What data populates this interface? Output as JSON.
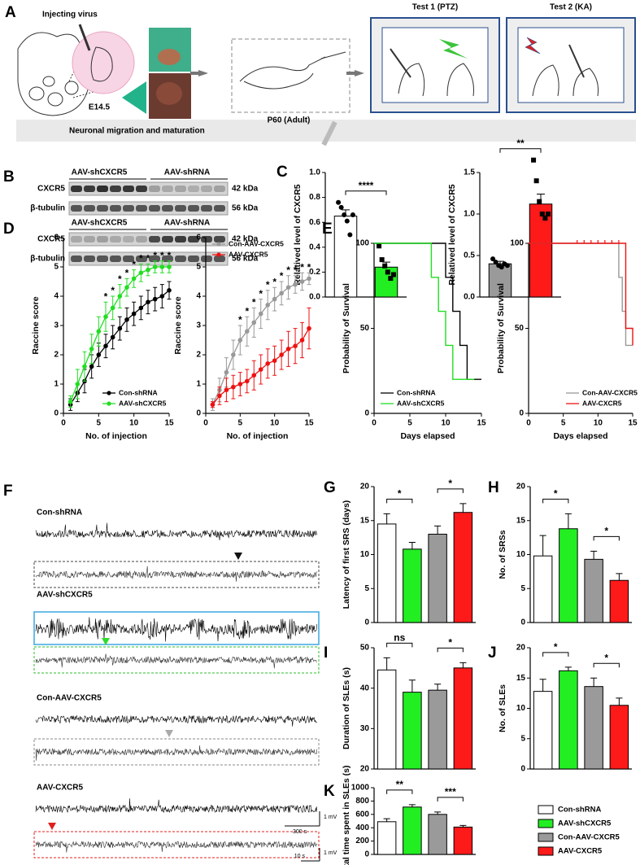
{
  "panel_labels": [
    "A",
    "B",
    "C",
    "D",
    "E",
    "F",
    "G",
    "H",
    "I",
    "J",
    "K"
  ],
  "panel_a": {
    "injection": "Injecting virus",
    "embryo_stage": "E14.5",
    "adult_stage": "P60 (Adult)",
    "tests": [
      "Test 1 (PTZ)",
      "Test 2 (KA)"
    ],
    "band": "Neuronal migration and maturation"
  },
  "panel_b": {
    "blots": [
      {
        "groups": [
          "AAV-shCXCR5",
          "AAV-shRNA"
        ],
        "rows": [
          {
            "protein": "CXCR5",
            "size": "42 kDa"
          },
          {
            "protein": "β-tubulin",
            "size": "56 kDa"
          }
        ]
      },
      {
        "groups": [
          "AAV-shCXCR5",
          "AAV-shRNA"
        ],
        "rows": [
          {
            "protein": "CXCR5",
            "size": "42 kDa"
          },
          {
            "protein": "β-tubulin",
            "size": "56 kDa"
          }
        ]
      }
    ]
  },
  "panel_f": {
    "traces": [
      "Con-shRNA",
      "AAV-shCXCR5",
      "Con-AAV-CXCR5",
      "AAV-CXCR5"
    ],
    "scale_bars": [
      "1 mV",
      "300 s",
      "1 mV",
      "10 s"
    ]
  },
  "legend": [
    {
      "name": "Con-shRNA",
      "color": "#ffffff"
    },
    {
      "name": "AAV-shCXCR5",
      "color": "#22ee22"
    },
    {
      "name": "Con-AAV-CXCR5",
      "color": "#9a9a9a"
    },
    {
      "name": "AAV-CXCR5",
      "color": "#ff1a1a"
    }
  ],
  "chart_data": [
    {
      "type": "bar",
      "ylabel": "Relatived level of CXCR5",
      "values": [
        0.65,
        0.24
      ],
      "errors": [
        0.05,
        0.04
      ],
      "colors": [
        "#ffffff",
        "#22ee22"
      ],
      "points": [
        [
          0.76,
          0.72,
          0.66,
          0.61,
          0.5,
          0.66
        ],
        [
          0.41,
          0.3,
          0.25,
          0.2,
          0.15,
          0.18
        ]
      ],
      "ylim": [
        0,
        1.0
      ],
      "yticks": [
        {
          "value": 0,
          "label": "0.0"
        },
        0.2,
        0.4,
        0.6,
        0.8,
        {
          "value": 1,
          "label": "1.0"
        }
      ],
      "comparisons": [
        "****"
      ]
    },
    {
      "type": "bar",
      "ylabel": "Relatived level of CXCR5",
      "values": [
        0.4,
        1.12
      ],
      "errors": [
        0.03,
        0.12
      ],
      "colors": [
        "#9a9a9a",
        "#ff1a1a"
      ],
      "points": [
        [
          0.46,
          0.42,
          0.38,
          0.36,
          0.4,
          0.38
        ],
        [
          1.65,
          1.4,
          1.15,
          1.0,
          0.95,
          1.0
        ]
      ],
      "ylim": [
        0,
        1.5
      ],
      "yticks": [
        {
          "value": 0,
          "label": "0.0"
        },
        0.5,
        {
          "value": 1,
          "label": "1.0"
        },
        1.5
      ],
      "comparisons": [
        "**"
      ]
    },
    {
      "type": "line",
      "xlabel": "No. of injection",
      "ylabel": "Raccine score",
      "x": [
        1,
        2,
        3,
        4,
        5,
        6,
        7,
        8,
        9,
        10,
        11,
        12,
        13,
        14,
        15
      ],
      "xlim": [
        0,
        15
      ],
      "xticks": [
        0,
        5,
        10,
        15
      ],
      "ylim": [
        0,
        6
      ],
      "yticks": [
        0,
        1,
        2,
        3,
        4,
        5,
        6
      ],
      "legend": "lower right",
      "series": [
        {
          "name": "Con-shRNA",
          "color": "#000000",
          "values": [
            0.3,
            0.7,
            1.1,
            1.6,
            2.0,
            2.3,
            2.6,
            2.9,
            3.2,
            3.4,
            3.6,
            3.8,
            3.9,
            4.0,
            4.2
          ],
          "errors": [
            0.2,
            0.3,
            0.4,
            0.4,
            0.4,
            0.4,
            0.4,
            0.4,
            0.4,
            0.4,
            0.4,
            0.4,
            0.4,
            0.4,
            0.3
          ]
        },
        {
          "name": "AAV-shCXCR5",
          "color": "#22dd22",
          "values": [
            0.4,
            1.0,
            1.6,
            2.2,
            2.8,
            3.3,
            3.6,
            4.0,
            4.3,
            4.6,
            4.8,
            4.9,
            5.0,
            5.0,
            5.0
          ],
          "errors": [
            0.2,
            0.5,
            0.5,
            0.5,
            0.5,
            0.5,
            0.4,
            0.4,
            0.3,
            0.3,
            0.3,
            0.2,
            0.2,
            0.2,
            0.2
          ]
        }
      ],
      "stars": [
        null,
        null,
        null,
        null,
        null,
        "*",
        "*",
        "*",
        "*",
        "*",
        "*",
        "*",
        "*",
        "*",
        "*"
      ]
    },
    {
      "type": "line",
      "xlabel": "No. of injection",
      "ylabel": "Raccine score",
      "x": [
        1,
        2,
        3,
        4,
        5,
        6,
        7,
        8,
        9,
        10,
        11,
        12,
        13,
        14,
        15
      ],
      "xlim": [
        0,
        15
      ],
      "xticks": [
        0,
        5,
        10,
        15
      ],
      "ylim": [
        0,
        6
      ],
      "yticks": [
        0,
        1,
        2,
        3,
        4,
        5,
        6
      ],
      "legend": "upper left",
      "series": [
        {
          "name": "Con-AAV-CXCR5",
          "color": "#999999",
          "values": [
            0.3,
            0.8,
            1.4,
            2.0,
            2.5,
            2.8,
            3.1,
            3.4,
            3.7,
            3.9,
            4.1,
            4.3,
            4.4,
            4.5,
            4.6
          ],
          "errors": [
            0.2,
            0.4,
            0.5,
            0.5,
            0.5,
            0.5,
            0.5,
            0.5,
            0.5,
            0.4,
            0.4,
            0.4,
            0.3,
            0.3,
            0.2
          ]
        },
        {
          "name": "AAV-CXCR5",
          "color": "#ee1111",
          "values": [
            0.3,
            0.6,
            0.8,
            0.9,
            1.0,
            1.1,
            1.3,
            1.5,
            1.7,
            1.8,
            2.0,
            2.2,
            2.3,
            2.5,
            2.9
          ],
          "errors": [
            0.1,
            0.3,
            0.4,
            0.4,
            0.4,
            0.4,
            0.5,
            0.5,
            0.5,
            0.5,
            0.5,
            0.6,
            0.6,
            0.6,
            0.7
          ]
        }
      ],
      "stars": [
        null,
        null,
        null,
        null,
        "*",
        "*",
        "*",
        "*",
        "*",
        "*",
        "*",
        "*",
        "*",
        "*",
        "*"
      ]
    },
    {
      "type": "step",
      "xlabel": "Days elapsed",
      "ylabel": "Probability of Survival",
      "xlim": [
        0,
        15
      ],
      "xticks": [
        0,
        5,
        10,
        15
      ],
      "ylim": [
        0,
        100
      ],
      "yticks": [
        0,
        50,
        100
      ],
      "legend": "lower left",
      "series": [
        {
          "name": "Con-shRNA",
          "color": "#000000",
          "x": [
            0,
            10,
            11,
            12,
            13,
            15
          ],
          "values": [
            100,
            80,
            60,
            40,
            20,
            20
          ]
        },
        {
          "name": "AAV-shCXCR5",
          "color": "#22dd22",
          "x": [
            0,
            8,
            9,
            10,
            11,
            14
          ],
          "values": [
            100,
            80,
            60,
            40,
            20,
            20
          ]
        }
      ]
    },
    {
      "type": "step",
      "xlabel": "Days elapsed",
      "ylabel": "Probability of Survival",
      "xlim": [
        0,
        15
      ],
      "xticks": [
        0,
        5,
        10,
        15
      ],
      "ylim": [
        0,
        100
      ],
      "yticks": [
        0,
        50,
        100
      ],
      "legend": "lower right",
      "series": [
        {
          "name": "Con-AAV-CXCR5",
          "color": "#999999",
          "x": [
            0,
            13,
            13.5,
            14,
            15
          ],
          "values": [
            100,
            80,
            60,
            40,
            40
          ]
        },
        {
          "name": "AAV-CXCR5",
          "color": "#ee1111",
          "x": [
            0,
            14,
            14.5,
            15
          ],
          "values": [
            100,
            50,
            50,
            40
          ],
          "censored_x": [
            7,
            8,
            9,
            10,
            11,
            12,
            13
          ]
        }
      ]
    },
    {
      "type": "bar",
      "ylabel": "Latency of first SRS (days)",
      "values": [
        14.5,
        10.8,
        13,
        16.2
      ],
      "errors": [
        1.5,
        1.0,
        1.2,
        1.3
      ],
      "colors": [
        "#ffffff",
        "#22ee22",
        "#9a9a9a",
        "#ff1a1a"
      ],
      "ylim": [
        0,
        20
      ],
      "yticks": [
        0,
        5,
        10,
        15,
        20
      ],
      "comparisons": [
        "*",
        "*"
      ]
    },
    {
      "type": "bar",
      "ylabel": "No. of SRSs",
      "values": [
        9.8,
        13.8,
        9.3,
        6.2
      ],
      "errors": [
        3.0,
        2.2,
        1.2,
        1.0
      ],
      "colors": [
        "#ffffff",
        "#22ee22",
        "#9a9a9a",
        "#ff1a1a"
      ],
      "ylim": [
        0,
        20
      ],
      "yticks": [
        0,
        5,
        10,
        15,
        20
      ],
      "comparisons": [
        "*",
        "*"
      ]
    },
    {
      "type": "bar",
      "ylabel": "Duration of SLEs (s)",
      "values": [
        44.5,
        39,
        39.5,
        45
      ],
      "errors": [
        3.0,
        3.0,
        1.5,
        1.3
      ],
      "colors": [
        "#ffffff",
        "#22ee22",
        "#9a9a9a",
        "#ff1a1a"
      ],
      "ylim": [
        20,
        50
      ],
      "yticks": [
        20,
        30,
        40,
        50
      ],
      "comparisons": [
        "ns",
        "*"
      ]
    },
    {
      "type": "bar",
      "ylabel": "No. of SLEs",
      "values": [
        12.8,
        16.2,
        13.6,
        10.5
      ],
      "errors": [
        2.0,
        0.6,
        1.4,
        1.2
      ],
      "colors": [
        "#ffffff",
        "#22ee22",
        "#9a9a9a",
        "#ff1a1a"
      ],
      "ylim": [
        0,
        20
      ],
      "yticks": [
        0,
        5,
        10,
        15,
        20
      ],
      "comparisons": [
        "*",
        "*"
      ]
    },
    {
      "type": "bar",
      "ylabel": "Total time spent in SLEs (s)",
      "values": [
        490,
        710,
        600,
        410
      ],
      "errors": [
        45,
        35,
        35,
        25
      ],
      "colors": [
        "#ffffff",
        "#22ee22",
        "#9a9a9a",
        "#ff1a1a"
      ],
      "ylim": [
        0,
        1000
      ],
      "yticks": [
        0,
        200,
        400,
        600,
        800,
        1000
      ],
      "comparisons": [
        "**",
        "***"
      ]
    }
  ]
}
